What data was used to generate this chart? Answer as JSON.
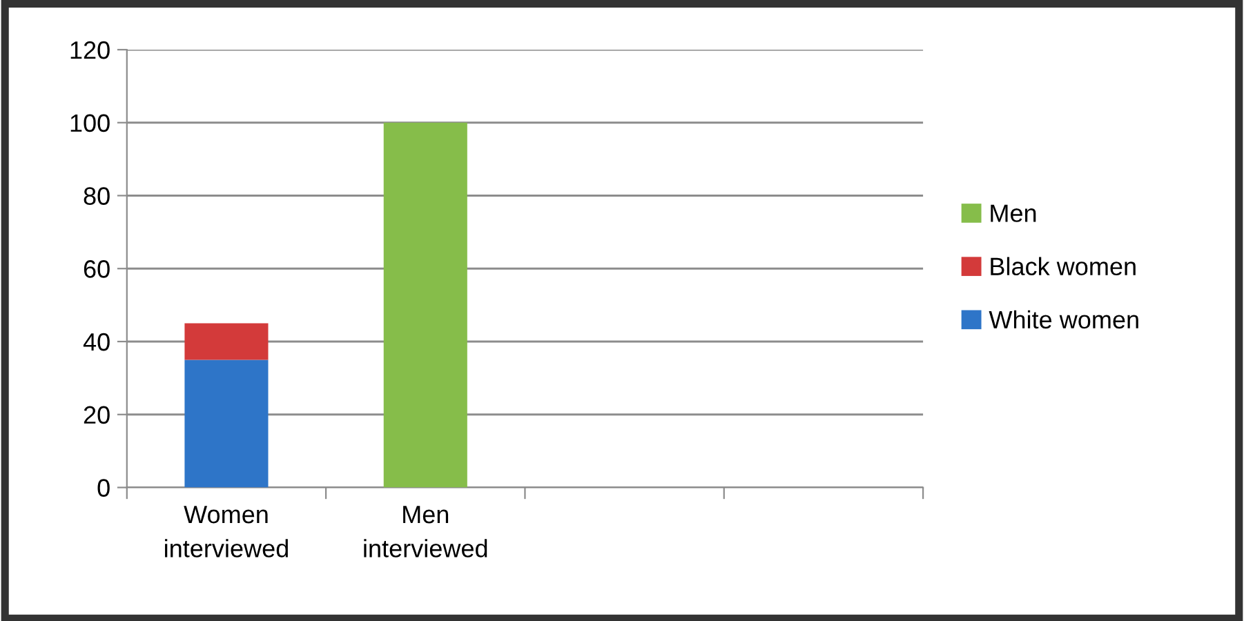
{
  "chart_data": {
    "type": "bar",
    "stacked": true,
    "categories": [
      "Women\ninterviewed",
      "Men\ninterviewed",
      null,
      null
    ],
    "series": [
      {
        "name": "White women",
        "color": "#2e75c8",
        "values": [
          35,
          0,
          0,
          0
        ]
      },
      {
        "name": "Black women",
        "color": "#d33a3a",
        "values": [
          10,
          0,
          0,
          0
        ]
      },
      {
        "name": "Men",
        "color": "#86bd4a",
        "values": [
          0,
          100,
          0,
          0
        ]
      }
    ],
    "ylim": [
      0,
      120
    ],
    "yticks": [
      0,
      20,
      40,
      60,
      80,
      100,
      120
    ],
    "grid": "y",
    "legend": "right"
  }
}
